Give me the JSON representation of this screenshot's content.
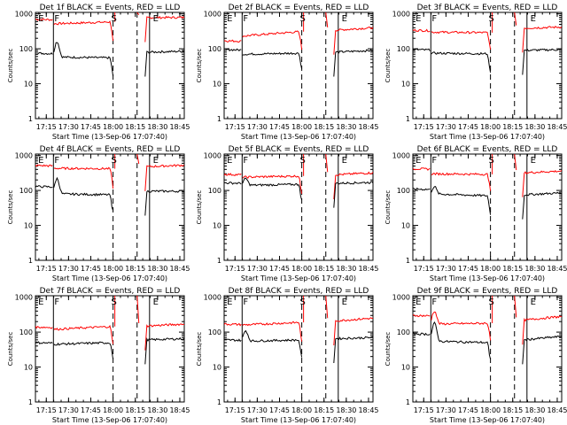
{
  "chart_data": [
    {
      "type": "line",
      "title": "Det 1f BLACK = Events, RED = LLD",
      "xlabel": "Start Time (13-Sep-06 17:07:40)",
      "ylabel": "Counts/sec",
      "series": [
        {
          "color": "#ff0000",
          "pre": 700,
          "after_dip": 520,
          "plateau": 590,
          "post": 780,
          "end": 790,
          "spike_at": 17.37,
          "spike": 0
        },
        {
          "color": "#000000",
          "pre": 75,
          "after_dip": 58,
          "plateau": 55,
          "post": 80,
          "end": 85,
          "spike_at": 17.37,
          "spike": 160
        }
      ],
      "markers": [
        {
          "label": "E",
          "x": 17.19
        },
        {
          "label": "F",
          "x": 17.37
        },
        {
          "label": "S",
          "x": 18.01
        },
        {
          "label": "E",
          "x": 18.48
        }
      ],
      "dashed_x": [
        18.0,
        18.27
      ],
      "solid_x": [
        17.33,
        18.41
      ]
    },
    {
      "type": "line",
      "title": "Det 2f BLACK = Events, RED = LLD",
      "xlabel": "Start Time (13-Sep-06 17:07:40)",
      "ylabel": "Counts/sec",
      "series": [
        {
          "color": "#ff0000",
          "pre": 170,
          "after_dip": 230,
          "plateau": 310,
          "post": 340,
          "end": 400,
          "spike_at": 17.37,
          "spike": 0
        },
        {
          "color": "#000000",
          "pre": 95,
          "after_dip": 70,
          "plateau": 75,
          "post": 80,
          "end": 90,
          "spike_at": 17.37,
          "spike": 0
        }
      ],
      "markers": [
        {
          "label": "E",
          "x": 17.19
        },
        {
          "label": "F",
          "x": 17.37
        },
        {
          "label": "S",
          "x": 18.01
        },
        {
          "label": "E",
          "x": 18.48
        }
      ],
      "dashed_x": [
        18.0,
        18.27
      ],
      "solid_x": [
        17.33,
        18.41
      ]
    },
    {
      "type": "line",
      "title": "Det 3f BLACK = Events, RED = LLD",
      "xlabel": "Start Time (13-Sep-06 17:07:40)",
      "ylabel": "Counts/sec",
      "series": [
        {
          "color": "#ff0000",
          "pre": 340,
          "after_dip": 300,
          "plateau": 290,
          "post": 390,
          "end": 420,
          "spike_at": 17.37,
          "spike": 0
        },
        {
          "color": "#000000",
          "pre": 95,
          "after_dip": 75,
          "plateau": 72,
          "post": 90,
          "end": 95,
          "spike_at": 17.37,
          "spike": 0
        }
      ],
      "markers": [
        {
          "label": "E",
          "x": 17.19
        },
        {
          "label": "F",
          "x": 17.37
        },
        {
          "label": "S",
          "x": 18.01
        },
        {
          "label": "E",
          "x": 18.48
        }
      ],
      "dashed_x": [
        18.0,
        18.27
      ],
      "solid_x": [
        17.33,
        18.41
      ]
    },
    {
      "type": "line",
      "title": "Det 4f BLACK = Events, RED = LLD",
      "xlabel": "Start Time (13-Sep-06 17:07:40)",
      "ylabel": "Counts/sec",
      "series": [
        {
          "color": "#ff0000",
          "pre": 520,
          "after_dip": 430,
          "plateau": 420,
          "post": 480,
          "end": 530,
          "spike_at": 17.37,
          "spike": 0
        },
        {
          "color": "#000000",
          "pre": 130,
          "after_dip": 80,
          "plateau": 75,
          "post": 95,
          "end": 95,
          "spike_at": 17.37,
          "spike": 220
        }
      ],
      "markers": [
        {
          "label": "E",
          "x": 17.19
        },
        {
          "label": "F",
          "x": 17.37
        },
        {
          "label": "S",
          "x": 18.01
        },
        {
          "label": "E",
          "x": 18.48
        }
      ],
      "dashed_x": [
        18.0,
        18.27
      ],
      "solid_x": [
        17.33,
        18.41
      ]
    },
    {
      "type": "line",
      "title": "Det 5f BLACK = Events, RED = LLD",
      "xlabel": "Start Time (13-Sep-06 17:07:40)",
      "ylabel": "Counts/sec",
      "series": [
        {
          "color": "#ff0000",
          "pre": 290,
          "after_dip": 240,
          "plateau": 260,
          "post": 280,
          "end": 320,
          "spike_at": 17.37,
          "spike": 0
        },
        {
          "color": "#000000",
          "pre": 165,
          "after_dip": 140,
          "plateau": 150,
          "post": 160,
          "end": 170,
          "spike_at": 17.37,
          "spike": 220
        }
      ],
      "markers": [
        {
          "label": "E",
          "x": 17.19
        },
        {
          "label": "F",
          "x": 17.37
        },
        {
          "label": "S",
          "x": 18.01
        },
        {
          "label": "E",
          "x": 18.48
        }
      ],
      "dashed_x": [
        18.0,
        18.27
      ],
      "solid_x": [
        17.33,
        18.41
      ]
    },
    {
      "type": "line",
      "title": "Det 6f BLACK = Events, RED = LLD",
      "xlabel": "Start Time (13-Sep-06 17:07:40)",
      "ylabel": "Counts/sec",
      "series": [
        {
          "color": "#ff0000",
          "pre": 420,
          "after_dip": 300,
          "plateau": 290,
          "post": 320,
          "end": 360,
          "spike_at": 17.37,
          "spike": 0
        },
        {
          "color": "#000000",
          "pre": 110,
          "after_dip": 80,
          "plateau": 70,
          "post": 75,
          "end": 85,
          "spike_at": 17.37,
          "spike": 130
        }
      ],
      "markers": [
        {
          "label": "E",
          "x": 17.19
        },
        {
          "label": "F",
          "x": 17.37
        },
        {
          "label": "S",
          "x": 18.01
        },
        {
          "label": "E",
          "x": 18.48
        }
      ],
      "dashed_x": [
        18.0,
        18.27
      ],
      "solid_x": [
        17.33,
        18.41
      ]
    },
    {
      "type": "line",
      "title": "Det 7f BLACK = Events, RED = LLD",
      "xlabel": "Start Time (13-Sep-06 17:07:40)",
      "ylabel": "Counts/sec",
      "series": [
        {
          "color": "#ff0000",
          "pre": 140,
          "after_dip": 120,
          "plateau": 145,
          "post": 150,
          "end": 170,
          "spike_at": 17.37,
          "spike": 0
        },
        {
          "color": "#000000",
          "pre": 50,
          "after_dip": 45,
          "plateau": 50,
          "post": 60,
          "end": 65,
          "spike_at": 17.37,
          "spike": 0
        }
      ],
      "markers": [
        {
          "label": "E",
          "x": 17.19
        },
        {
          "label": "F",
          "x": 17.37
        },
        {
          "label": "S",
          "x": 18.01
        },
        {
          "label": "E",
          "x": 18.48
        }
      ],
      "dashed_x": [
        18.0,
        18.27
      ],
      "solid_x": [
        17.33,
        18.41
      ]
    },
    {
      "type": "line",
      "title": "Det 8f BLACK = Events, RED = LLD",
      "xlabel": "Start Time (13-Sep-06 17:07:40)",
      "ylabel": "Counts/sec",
      "series": [
        {
          "color": "#ff0000",
          "pre": 170,
          "after_dip": 160,
          "plateau": 190,
          "post": 210,
          "end": 250,
          "spike_at": 17.37,
          "spike": 0
        },
        {
          "color": "#000000",
          "pre": 60,
          "after_dip": 55,
          "plateau": 60,
          "post": 65,
          "end": 70,
          "spike_at": 17.37,
          "spike": 110
        }
      ],
      "markers": [
        {
          "label": "E",
          "x": 17.19
        },
        {
          "label": "F",
          "x": 17.37
        },
        {
          "label": "S",
          "x": 18.01
        },
        {
          "label": "E",
          "x": 18.48
        }
      ],
      "dashed_x": [
        18.0,
        18.27
      ],
      "solid_x": [
        17.33,
        18.41
      ]
    },
    {
      "type": "line",
      "title": "Det 9f BLACK = Events, RED = LLD",
      "xlabel": "Start Time (13-Sep-06 17:07:40)",
      "ylabel": "Counts/sec",
      "series": [
        {
          "color": "#ff0000",
          "pre": 300,
          "after_dip": 170,
          "plateau": 180,
          "post": 220,
          "end": 280,
          "spike_at": 17.37,
          "spike": 400
        },
        {
          "color": "#000000",
          "pre": 90,
          "after_dip": 55,
          "plateau": 50,
          "post": 60,
          "end": 75,
          "spike_at": 17.37,
          "spike": 180
        }
      ],
      "markers": [
        {
          "label": "E",
          "x": 17.19
        },
        {
          "label": "F",
          "x": 17.37
        },
        {
          "label": "S",
          "x": 18.01
        },
        {
          "label": "E",
          "x": 18.48
        }
      ],
      "dashed_x": [
        18.0,
        18.27
      ],
      "solid_x": [
        17.33,
        18.41
      ]
    }
  ],
  "axes": {
    "x_ticks": [
      "17:15",
      "17:30",
      "17:45",
      "18:00",
      "18:15",
      "18:30",
      "18:45"
    ],
    "x_tick_hours": [
      17.25,
      17.5,
      17.75,
      18.0,
      18.25,
      18.5,
      18.75
    ],
    "xlim": [
      17.128,
      18.8
    ],
    "y_ticks": [
      "1",
      "10",
      "100",
      "1000"
    ],
    "y_tick_values": [
      1,
      10,
      100,
      1000
    ],
    "ylim": [
      1,
      1100
    ],
    "yscale": "log"
  }
}
